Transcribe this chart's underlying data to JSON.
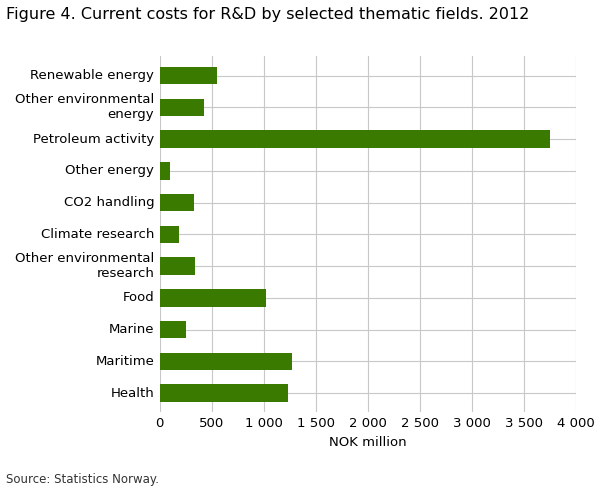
{
  "title": "Figure 4. Current costs for R&D by selected thematic fields. 2012",
  "categories": [
    "Renewable energy",
    "Other environmental\nenergy",
    "Petroleum activity",
    "Other energy",
    "CO2 handling",
    "Climate research",
    "Other environmental\nresearch",
    "Food",
    "Marine",
    "Maritime",
    "Health"
  ],
  "values": [
    550,
    420,
    3750,
    100,
    330,
    185,
    340,
    1020,
    255,
    1270,
    1230
  ],
  "bar_color": "#3a7a00",
  "xlabel": "NOK million",
  "xlim": [
    0,
    4000
  ],
  "xticks": [
    0,
    500,
    1000,
    1500,
    2000,
    2500,
    3000,
    3500,
    4000
  ],
  "source": "Source: Statistics Norway.",
  "background_color": "#ffffff",
  "grid_color": "#c8c8c8",
  "title_fontsize": 11.5,
  "label_fontsize": 9.5,
  "tick_fontsize": 9.5,
  "source_fontsize": 8.5
}
